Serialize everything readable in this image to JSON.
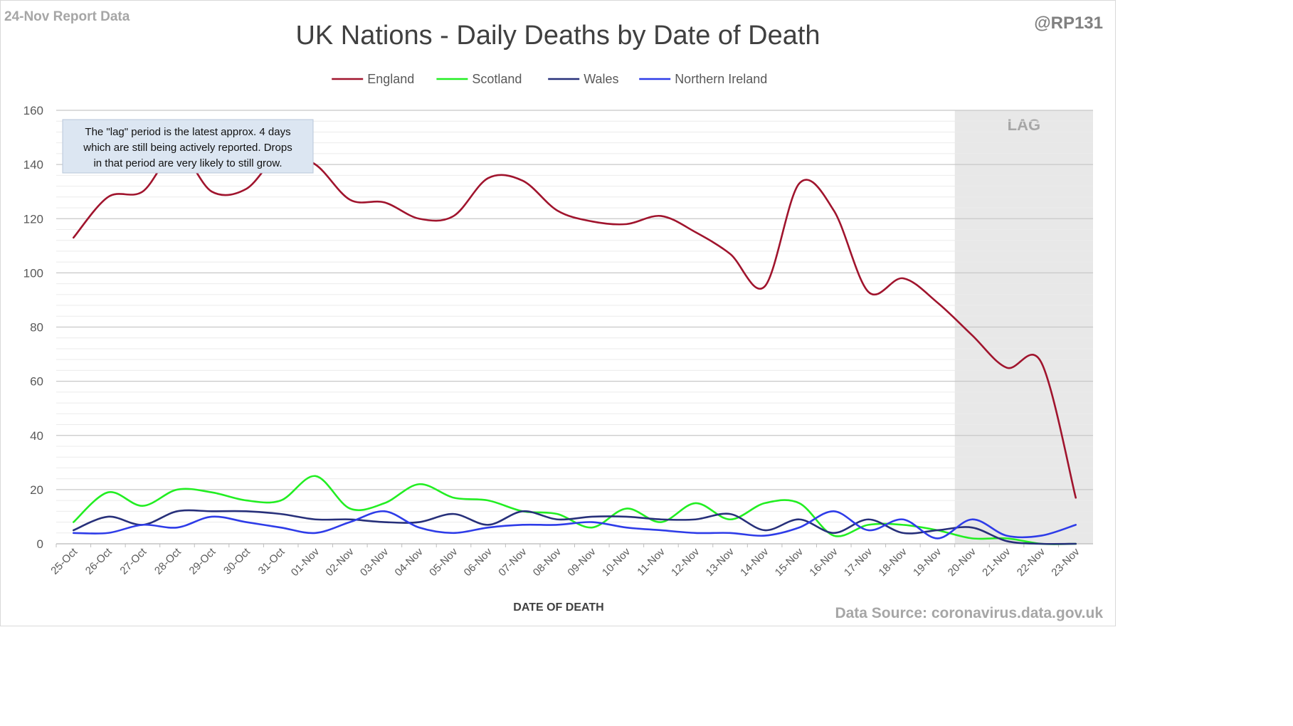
{
  "header": {
    "report_label": "24-Nov Report Data",
    "handle": "@RP131"
  },
  "footer": {
    "source": "Data Source: coronavirus.data.gov.uk"
  },
  "colors": {
    "England": "#A0142D",
    "Scotland": "#22EE22",
    "Wales": "#27307A",
    "Northern Ireland": "#2E3CE8",
    "lag_shade": "#E8E8E8",
    "grid": "#D9D9D9",
    "axis_text": "#595959",
    "note_bg": "#DCE6F2"
  },
  "chart_data": {
    "type": "line",
    "title": "UK Nations - Daily Deaths by Date of Death",
    "xlabel": "DATE OF DEATH",
    "ylabel": "",
    "ylim": [
      0,
      160
    ],
    "yticks": [
      0,
      20,
      40,
      60,
      80,
      100,
      120,
      140,
      160
    ],
    "grid": true,
    "smoothed": true,
    "legend_position": "top-center",
    "categories": [
      "25-Oct",
      "26-Oct",
      "27-Oct",
      "28-Oct",
      "29-Oct",
      "30-Oct",
      "31-Oct",
      "01-Nov",
      "02-Nov",
      "03-Nov",
      "04-Nov",
      "05-Nov",
      "06-Nov",
      "07-Nov",
      "08-Nov",
      "09-Nov",
      "10-Nov",
      "11-Nov",
      "12-Nov",
      "13-Nov",
      "14-Nov",
      "15-Nov",
      "16-Nov",
      "17-Nov",
      "18-Nov",
      "19-Nov",
      "20-Nov",
      "21-Nov",
      "22-Nov",
      "23-Nov"
    ],
    "series": [
      {
        "name": "England",
        "values": [
          113,
          128,
          130,
          145,
          130,
          131,
          144,
          140,
          127,
          126,
          120,
          121,
          135,
          134,
          123,
          119,
          118,
          121,
          115,
          107,
          95,
          133,
          123,
          93,
          98,
          89,
          77,
          65,
          67,
          17
        ]
      },
      {
        "name": "Scotland",
        "values": [
          8,
          19,
          14,
          20,
          19,
          16,
          16,
          25,
          13,
          15,
          22,
          17,
          16,
          12,
          11,
          6,
          13,
          8,
          15,
          9,
          15,
          15,
          3,
          7,
          7,
          5,
          2,
          2,
          0,
          0
        ]
      },
      {
        "name": "Wales",
        "values": [
          5,
          10,
          7,
          12,
          12,
          12,
          11,
          9,
          9,
          8,
          8,
          11,
          7,
          12,
          9,
          10,
          10,
          9,
          9,
          11,
          5,
          9,
          4,
          9,
          4,
          5,
          6,
          1,
          0,
          0
        ]
      },
      {
        "name": "Northern Ireland",
        "values": [
          4,
          4,
          7,
          6,
          10,
          8,
          6,
          4,
          8,
          12,
          6,
          4,
          6,
          7,
          7,
          8,
          6,
          5,
          4,
          4,
          3,
          6,
          12,
          5,
          9,
          2,
          9,
          3,
          3,
          7
        ]
      }
    ],
    "lag": {
      "label": "LAG",
      "from_category": "20-Nov",
      "to_category": "23-Nov"
    },
    "annotation": {
      "lines": [
        "The \"lag\" period is the latest approx. 4 days",
        "which are still being actively reported.  Drops",
        "in that period are very likely to still grow."
      ]
    }
  }
}
